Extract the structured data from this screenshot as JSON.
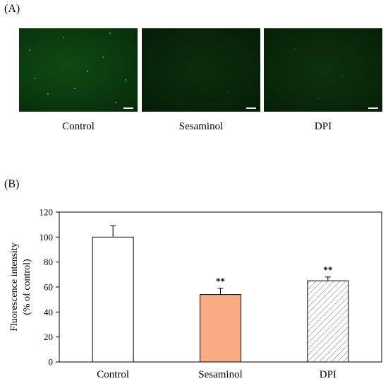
{
  "panel_a": {
    "label": "(A)",
    "images": [
      {
        "caption": "Control"
      },
      {
        "caption": "Sesaminol"
      },
      {
        "caption": "DPI"
      }
    ]
  },
  "panel_b": {
    "label": "(B)"
  },
  "chart_data": {
    "type": "bar",
    "categories": [
      "Control",
      "Sesaminol",
      "DPI"
    ],
    "values": [
      100,
      54,
      65
    ],
    "errors": [
      9,
      5,
      3
    ],
    "significance": [
      "",
      "**",
      "**"
    ],
    "bar_colors": [
      "#ffffff",
      "#f9ac84",
      "hatch"
    ],
    "ylabel": [
      "Fluorescence intensity",
      "(% of control)"
    ],
    "ylim": [
      0,
      120
    ],
    "yticks": [
      0,
      20,
      40,
      60,
      80,
      100,
      120
    ],
    "grid": false
  }
}
